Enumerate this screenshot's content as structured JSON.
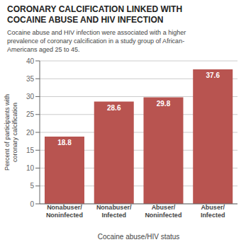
{
  "chart_data": {
    "type": "bar",
    "title": "CORONARY CALCIFICATION LINKED WITH\nCOCAINE ABUSE AND HIV INFECTION",
    "subtitle": "Cocaine abuse and HIV infection were associated with a higher\nprevalence of coronary calcification in a study group of African-\nAmericans aged 25 to 45.",
    "categories": [
      "Nonabuser/\nNoninfected",
      "Nonabuser/\nInfected",
      "Abuser/\nNoninfected",
      "Abuser/\nInfected"
    ],
    "values": [
      18.8,
      28.6,
      29.8,
      37.6
    ],
    "color": "#b85450",
    "ylabel": "Percent of participants with\ncoronary calcification",
    "xlabel": "Cocaine abuse/HIV status",
    "ylim": [
      0,
      40
    ],
    "yticks": [
      0,
      5,
      10,
      15,
      20,
      25,
      30,
      35,
      40
    ],
    "grid": true,
    "data_labels": true
  }
}
